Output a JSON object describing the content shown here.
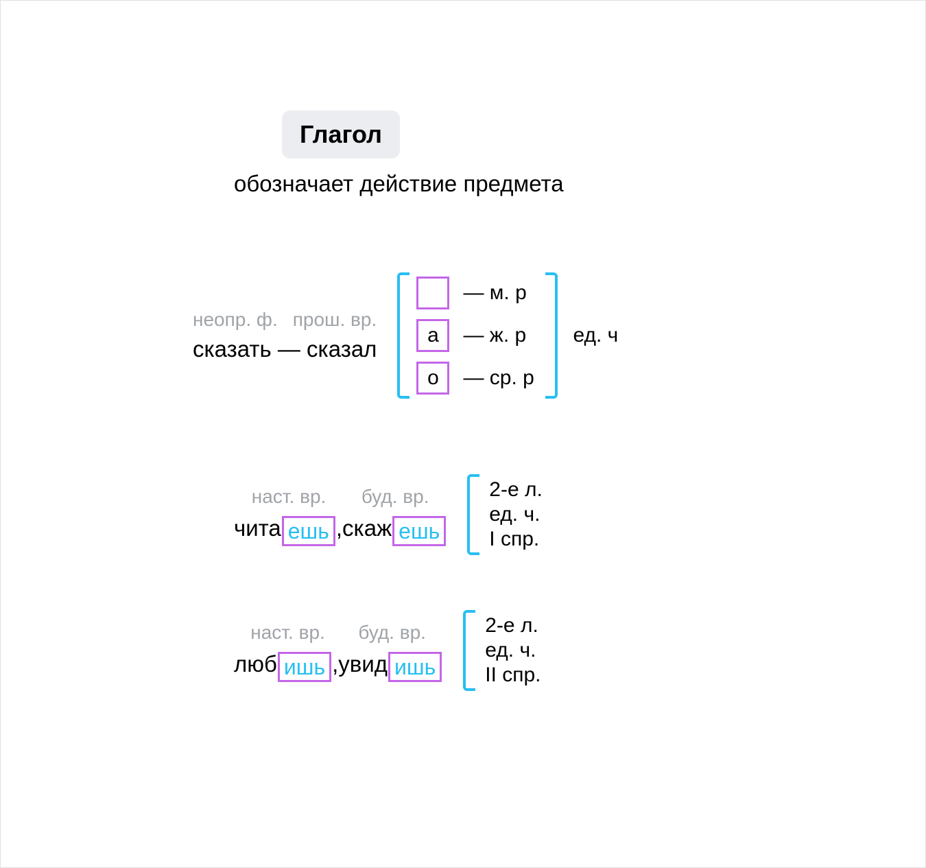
{
  "colors": {
    "accent_cyan": "#27bff2",
    "accent_magenta": "#c466e8",
    "text_primary": "#000000",
    "text_muted": "#a0a4a8",
    "pill_bg": "#ebedf0",
    "bg": "#ffffff"
  },
  "typography": {
    "title_size_pt": 36,
    "body_size_pt": 33,
    "label_size_pt": 28,
    "info_size_pt": 30
  },
  "header": {
    "title": "Глагол",
    "subtitle": "обозначает действие предмета"
  },
  "section1": {
    "labels": {
      "infinitive": "неопр. ф.",
      "past": "прош. вр."
    },
    "words": "сказать — сказал",
    "genders": [
      {
        "suffix": "",
        "label": "— м. р"
      },
      {
        "suffix": "а",
        "label": "— ж. р"
      },
      {
        "suffix": "о",
        "label": "— ср. р"
      }
    ],
    "right_label": "ед. ч"
  },
  "section2": {
    "labels": {
      "present": "наст. вр.",
      "future": "буд. вр."
    },
    "word1_root": "чита",
    "word1_ending": "ешь",
    "sep": ", ",
    "word2_root": "скаж",
    "word2_ending": "ешь",
    "info": [
      "2-е л.",
      "ед. ч.",
      "I спр."
    ]
  },
  "section3": {
    "labels": {
      "present": "наст. вр.",
      "future": "буд. вр."
    },
    "word1_root": "люб",
    "word1_ending": "ишь",
    "sep": ", ",
    "word2_root": "увид",
    "word2_ending": "ишь",
    "info": [
      "2-е л.",
      "ед. ч.",
      "II спр."
    ]
  }
}
